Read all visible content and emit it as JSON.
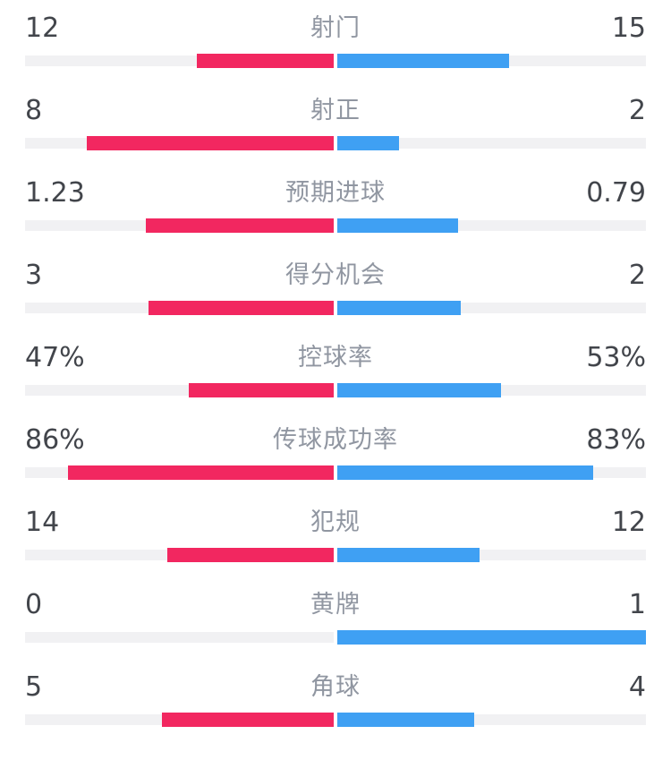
{
  "colors": {
    "background": "#FFFFFF",
    "home_bar": "#F22760",
    "away_bar": "#3FA0F3",
    "track": "#F1F1F3",
    "value_text": "#42454B",
    "label_text": "#9096A1"
  },
  "chart_data": {
    "type": "bar",
    "layout": "paired-horizontal-diverging-from-center",
    "home_side": "left",
    "away_side": "right",
    "rows": [
      {
        "label": "射门",
        "home_display": "12",
        "away_display": "15",
        "home_value": 12,
        "away_value": 15,
        "scale": "share-of-total"
      },
      {
        "label": "射正",
        "home_display": "8",
        "away_display": "2",
        "home_value": 8,
        "away_value": 2,
        "scale": "share-of-total"
      },
      {
        "label": "预期进球",
        "home_display": "1.23",
        "away_display": "0.79",
        "home_value": 1.23,
        "away_value": 0.79,
        "scale": "share-of-total"
      },
      {
        "label": "得分机会",
        "home_display": "3",
        "away_display": "2",
        "home_value": 3,
        "away_value": 2,
        "scale": "share-of-total"
      },
      {
        "label": "控球率",
        "home_display": "47%",
        "away_display": "53%",
        "home_value": 47,
        "away_value": 53,
        "scale": "percent"
      },
      {
        "label": "传球成功率",
        "home_display": "86%",
        "away_display": "83%",
        "home_value": 86,
        "away_value": 83,
        "scale": "percent"
      },
      {
        "label": "犯规",
        "home_display": "14",
        "away_display": "12",
        "home_value": 14,
        "away_value": 12,
        "scale": "share-of-total"
      },
      {
        "label": "黄牌",
        "home_display": "0",
        "away_display": "1",
        "home_value": 0,
        "away_value": 1,
        "scale": "share-of-total"
      },
      {
        "label": "角球",
        "home_display": "5",
        "away_display": "4",
        "home_value": 5,
        "away_value": 4,
        "scale": "share-of-total"
      }
    ]
  }
}
